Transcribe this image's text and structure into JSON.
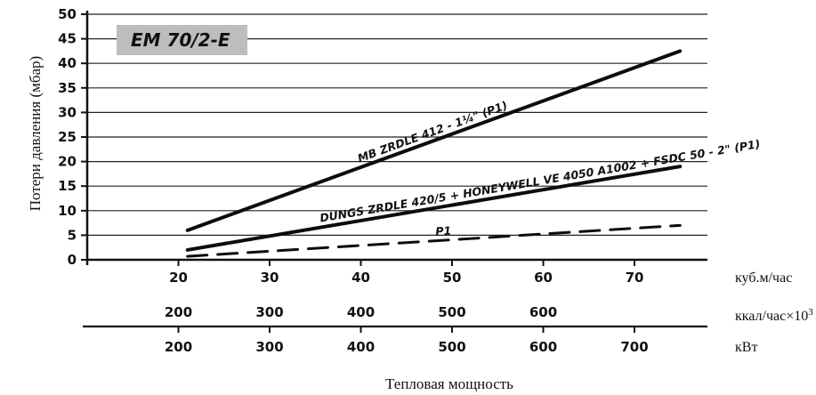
{
  "chart_data": {
    "type": "line",
    "title": "EM 70/2-E",
    "ylabel": "Потери давления (мбар)",
    "xlabel": "Тепловая мощность",
    "ylim": [
      0,
      50
    ],
    "y_ticks": [
      "0",
      "5",
      "10",
      "15",
      "20",
      "25",
      "30",
      "35",
      "40",
      "45",
      "50"
    ],
    "xlim": [
      10,
      78
    ],
    "axes": [
      {
        "unit": "куб.м/час",
        "ticks": [
          "20",
          "30",
          "40",
          "50",
          "60",
          "70"
        ]
      },
      {
        "unit": "ккал/час×10",
        "unit_sup": "3",
        "ticks": [
          "200",
          "300",
          "400",
          "500",
          "600"
        ]
      },
      {
        "unit": "кВт",
        "ticks": [
          "200",
          "300",
          "400",
          "500",
          "600",
          "700"
        ]
      }
    ],
    "series": [
      {
        "name": "MB ZRDLE 412 - 1¼\" (P1)",
        "style": "solid",
        "x": [
          21,
          75
        ],
        "y": [
          6,
          42.5
        ]
      },
      {
        "name": "DUNGS ZRDLE 420/5 + HONEYWELL VE 4050 A1002 + FSDC 50 - 2\" (P1)",
        "style": "solid",
        "x": [
          21,
          75
        ],
        "y": [
          2,
          19
        ]
      },
      {
        "name": "P1",
        "style": "dashed",
        "x": [
          21,
          75
        ],
        "y": [
          0.7,
          7
        ]
      }
    ]
  }
}
